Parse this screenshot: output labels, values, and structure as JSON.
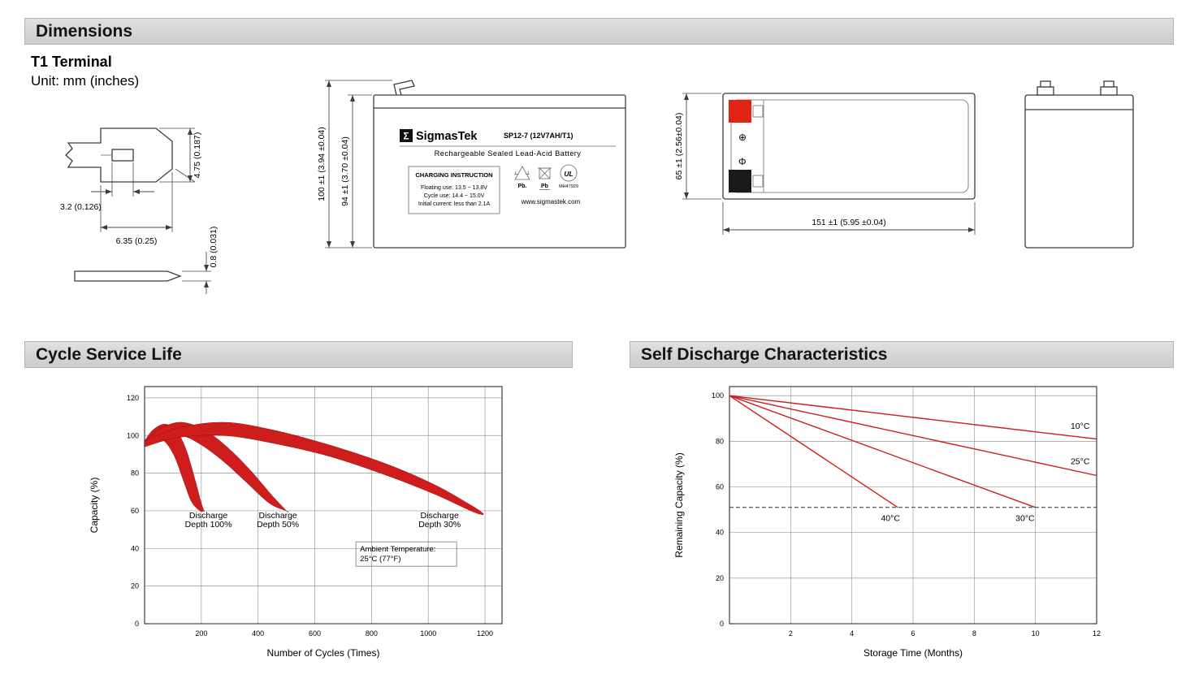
{
  "sections": {
    "dimensions": "Dimensions"
  },
  "dimensions": {
    "terminal_title": "T1 Terminal",
    "unit_label": "Unit: mm (inches)",
    "terminal": {
      "height": "4.75 (0.187)",
      "slot_width": "3.2 (0.126)",
      "tab_width": "6.35 (0.25)",
      "thickness": "0.8 (0.031)"
    },
    "front_view": {
      "overall_height": "100 ±1 (3.94 ±0.04)",
      "case_height": "94 ±1 (3.70 ±0.04)",
      "label": {
        "logo_glyph": "Σ",
        "brand": "SigmasTek",
        "model": "SP12-7 (12V7AH/T1)",
        "type_line": "Rechargeable Sealed Lead-Acid Battery",
        "charging_title": "CHARGING INSTRUCTION",
        "charging_line1": "Floating use: 13.5 ~ 13.8V",
        "charging_line2": "Cycle use: 14.4 ~ 15.0V",
        "charging_line3": "Initial current: less than 2.1A",
        "recycle_pb": "Pb.",
        "bin_pb": "Pb",
        "ul_text": "UL",
        "ul_code": "MH47929",
        "website": "www.sigmastek.com"
      }
    },
    "top_view": {
      "depth": "65 ±1 (2.56±0.04)",
      "length": "151 ±1 (5.95 ±0.04)",
      "polarity_positive": "⊕",
      "polarity_negative": "Φ",
      "positive_color": "#e02313",
      "negative_color": "#1a1a1a"
    }
  },
  "chart_data": [
    {
      "type": "area",
      "title": "Cycle Service Life",
      "xlabel": "Number of Cycles (Times)",
      "ylabel": "Capacity (%)",
      "xlim": [
        0,
        1260
      ],
      "ylim": [
        0,
        126
      ],
      "xticks": [
        200,
        400,
        600,
        800,
        1000,
        1200
      ],
      "yticks": [
        0,
        20,
        40,
        60,
        80,
        100,
        120
      ],
      "grid": true,
      "legend_position": "none",
      "series_color": "#cf1d1d",
      "bands": [
        {
          "name": "Discharge Depth 100%",
          "label_lines": [
            "Discharge",
            "Depth 100%"
          ],
          "label_x": 225,
          "label_y": 56,
          "upper": [
            [
              0,
              97
            ],
            [
              30,
              103
            ],
            [
              70,
              106
            ],
            [
              110,
              103
            ],
            [
              145,
              93
            ],
            [
              175,
              78
            ],
            [
              200,
              64
            ],
            [
              210,
              60
            ]
          ],
          "lower": [
            [
              0,
              94
            ],
            [
              35,
              98
            ],
            [
              70,
              97
            ],
            [
              105,
              89
            ],
            [
              135,
              77
            ],
            [
              165,
              65
            ],
            [
              195,
              60
            ],
            [
              210,
              60
            ]
          ]
        },
        {
          "name": "Discharge Depth 50%",
          "label_lines": [
            "Discharge",
            "Depth 50%"
          ],
          "label_x": 470,
          "label_y": 56,
          "upper": [
            [
              0,
              97
            ],
            [
              60,
              104
            ],
            [
              130,
              107
            ],
            [
              210,
              103
            ],
            [
              290,
              94
            ],
            [
              370,
              82
            ],
            [
              450,
              68
            ],
            [
              500,
              60
            ]
          ],
          "lower": [
            [
              0,
              94
            ],
            [
              60,
              99
            ],
            [
              130,
              100
            ],
            [
              200,
              95
            ],
            [
              280,
              86
            ],
            [
              360,
              75
            ],
            [
              440,
              64
            ],
            [
              500,
              60
            ]
          ]
        },
        {
          "name": "Discharge Depth 30%",
          "label_lines": [
            "Discharge",
            "Depth 30%"
          ],
          "label_x": 1040,
          "label_y": 56,
          "upper": [
            [
              0,
              97
            ],
            [
              120,
              104
            ],
            [
              280,
              107
            ],
            [
              450,
              103
            ],
            [
              650,
              95
            ],
            [
              850,
              85
            ],
            [
              1020,
              74
            ],
            [
              1150,
              63
            ],
            [
              1190,
              59
            ]
          ],
          "lower": [
            [
              0,
              94
            ],
            [
              120,
              99
            ],
            [
              280,
              100
            ],
            [
              450,
              96
            ],
            [
              650,
              89
            ],
            [
              850,
              79
            ],
            [
              1020,
              69
            ],
            [
              1150,
              60
            ],
            [
              1190,
              58
            ]
          ]
        }
      ],
      "annotation": {
        "lines": [
          "Ambient Temperature:",
          "25°C (77°F)"
        ],
        "x": 745,
        "y": 43.5
      }
    },
    {
      "type": "line",
      "title": "Self Discharge Characteristics",
      "xlabel": "Storage Time (Months)",
      "ylabel": "Remaining Capacity (%)",
      "xlim": [
        0,
        12
      ],
      "ylim": [
        0,
        104
      ],
      "xticks": [
        2,
        4,
        6,
        8,
        10,
        12
      ],
      "yticks": [
        0,
        20,
        40,
        60,
        80,
        100
      ],
      "grid": true,
      "legend_position": "inline-labels",
      "series_color": "#cf1d1d",
      "series": [
        {
          "name": "10°C",
          "x": [
            0,
            12
          ],
          "y": [
            100,
            81
          ],
          "label_x": 11.15,
          "label_y": 85.5
        },
        {
          "name": "25°C",
          "x": [
            0,
            12
          ],
          "y": [
            100,
            65
          ],
          "label_x": 11.15,
          "label_y": 70
        },
        {
          "name": "30°C",
          "x": [
            0,
            10
          ],
          "y": [
            100,
            51
          ],
          "label_x": 9.35,
          "label_y": 45
        },
        {
          "name": "40°C",
          "x": [
            0,
            5.5
          ],
          "y": [
            100,
            51
          ],
          "label_x": 4.95,
          "label_y": 45
        }
      ],
      "reference_line": {
        "y": 51,
        "style": "dashed"
      }
    }
  ]
}
